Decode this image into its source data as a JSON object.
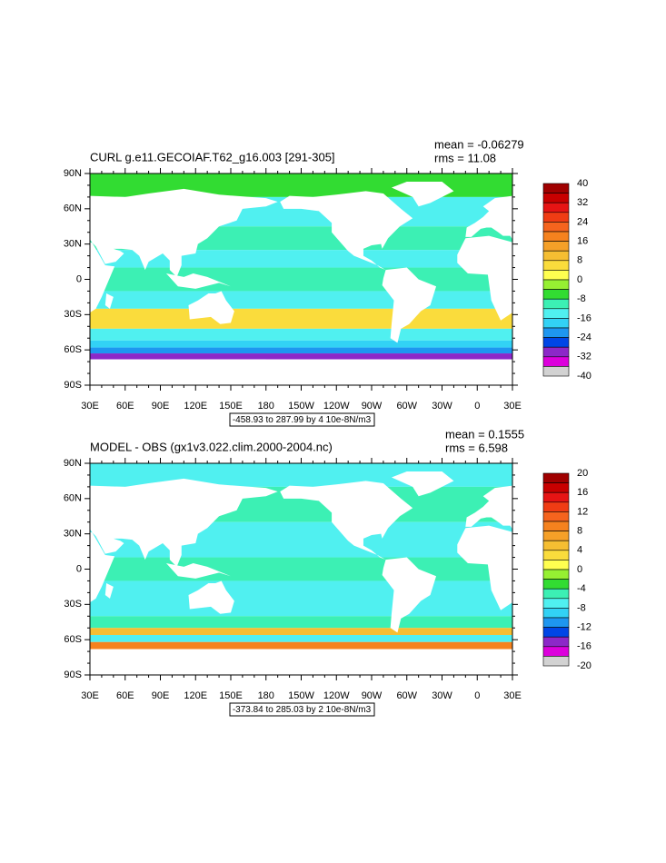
{
  "panels": [
    {
      "title": "CURL g.e11.GECOIAF.T62_g16.003 [291-305]",
      "mean": "mean = -0.06279",
      "rms": "rms = 11.08",
      "lat_labels": [
        "90N",
        "60N",
        "30N",
        "0",
        "30S",
        "60S",
        "90S"
      ],
      "lon_labels": [
        "30E",
        "60E",
        "90E",
        "120E",
        "150E",
        "180",
        "150W",
        "120W",
        "90W",
        "60W",
        "30W",
        "0",
        "30E"
      ],
      "info": "-458.93 to 287.99 by 4 10e-8N/m3",
      "colorbar": {
        "labels": [
          40,
          32,
          24,
          16,
          8,
          0,
          -8,
          -16,
          -24,
          -32,
          -40
        ],
        "colors": [
          "#a00000",
          "#c80000",
          "#e61414",
          "#f03c14",
          "#f5641e",
          "#f5821e",
          "#f5a028",
          "#f5be32",
          "#fadc3c",
          "#ffff50",
          "#96f032",
          "#32dc32",
          "#3cf0b4",
          "#50f0f0",
          "#32d2f5",
          "#1e96f0",
          "#0046e6",
          "#8c28c8",
          "#dc00dc",
          "#d2d2d2"
        ]
      }
    },
    {
      "title": "MODEL - OBS (gx1v3.022.clim.2000-2004.nc)",
      "mean": "mean = 0.1555",
      "rms": "rms = 6.598",
      "lat_labels": [
        "90N",
        "60N",
        "30N",
        "0",
        "30S",
        "60S",
        "90S"
      ],
      "lon_labels": [
        "30E",
        "60E",
        "90E",
        "120E",
        "150E",
        "180",
        "150W",
        "120W",
        "90W",
        "60W",
        "30W",
        "0",
        "30E"
      ],
      "info": "-373.84 to 285.03 by 2 10e-8N/m3",
      "colorbar": {
        "labels": [
          20,
          16,
          12,
          8,
          4,
          0,
          -4,
          -8,
          -12,
          -16,
          -20
        ],
        "colors": [
          "#a00000",
          "#c80000",
          "#e61414",
          "#f03c14",
          "#f5641e",
          "#f5821e",
          "#f5a028",
          "#f5be32",
          "#fadc3c",
          "#ffff50",
          "#96f032",
          "#32dc32",
          "#3cf0b4",
          "#50f0f0",
          "#32d2f5",
          "#1e96f0",
          "#0046e6",
          "#8c28c8",
          "#dc00dc",
          "#d2d2d2"
        ]
      }
    }
  ]
}
